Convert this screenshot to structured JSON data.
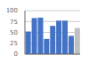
{
  "chart_data": {
    "type": "bar",
    "categories": [
      null,
      null,
      null,
      null,
      null,
      null,
      null,
      null,
      null
    ],
    "values": [
      52,
      83,
      84,
      35,
      65,
      77,
      77,
      42,
      60
    ],
    "colors": [
      "#4472c4",
      "#4472c4",
      "#4472c4",
      "#4472c4",
      "#4472c4",
      "#4472c4",
      "#4472c4",
      "#4472c4",
      "#bfbfbf"
    ],
    "ylim": [
      0,
      100
    ],
    "yticks": [
      0,
      25,
      50,
      75,
      100
    ],
    "grid": true,
    "tick_labels": "y"
  }
}
